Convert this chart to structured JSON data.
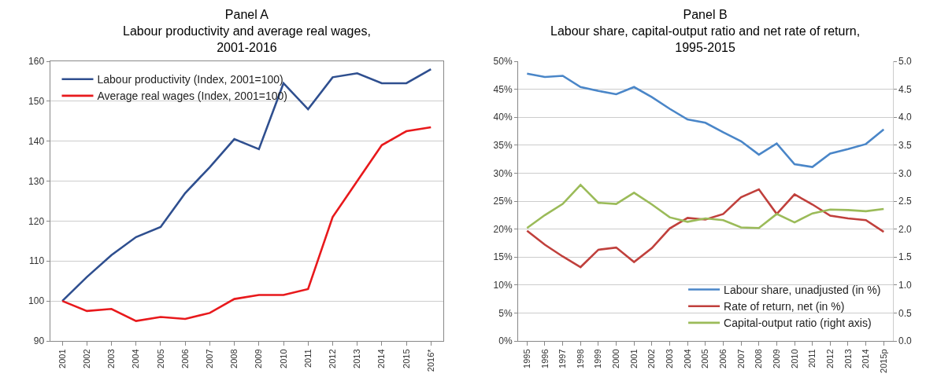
{
  "chart_data": [
    {
      "type": "line",
      "title": "Panel A\nLabour productivity and average real wages,\n2001-2016",
      "categories": [
        "2001",
        "2002",
        "2003",
        "2004",
        "2005",
        "2006",
        "2007",
        "2008",
        "2009",
        "2010",
        "2011",
        "2012",
        "2013",
        "2014",
        "2015",
        "2016*"
      ],
      "series": [
        {
          "name": "Labour productivity (Index, 2001=100)",
          "color": "#2f4f8f",
          "values": [
            100,
            106,
            111.5,
            116,
            118.5,
            127,
            133.5,
            140.5,
            138,
            154.5,
            148,
            156,
            157,
            154.5,
            154.5,
            158
          ]
        },
        {
          "name": "Average real wages (Index, 2001=100)",
          "color": "#e8191c",
          "values": [
            100,
            97.5,
            98,
            95,
            96,
            95.5,
            97,
            100.5,
            101.5,
            101.5,
            103,
            121,
            130,
            139,
            142.5,
            143.5
          ]
        }
      ],
      "ylim": [
        90,
        160
      ],
      "yticks": [
        90,
        100,
        110,
        120,
        130,
        140,
        150,
        160
      ],
      "grid": "y",
      "legend": "top left",
      "marker": "none",
      "line_style": "solid"
    },
    {
      "type": "line",
      "title": "Panel B\nLabour share, capital-output ratio and net rate of return,\n1995-2015",
      "categories": [
        "1995",
        "1996",
        "1997",
        "1998",
        "1999",
        "2000",
        "2001",
        "2002",
        "2003",
        "2004",
        "2005",
        "2006",
        "2007",
        "2008",
        "2009",
        "2010",
        "2011",
        "2012",
        "2013",
        "2014",
        "2015p"
      ],
      "series": [
        {
          "name": "Labour share, unadjusted (in %)",
          "color": "#4a86c8",
          "values": [
            47.8,
            47.2,
            47.4,
            45.4,
            44.7,
            44.1,
            45.4,
            43.6,
            41.5,
            39.6,
            39,
            37.3,
            35.7,
            33.3,
            35.3,
            31.6,
            31.1,
            33.5,
            34.3,
            35.2,
            37.8
          ]
        },
        {
          "name": "Rate of return, net (in %)",
          "color": "#c0403c",
          "values": [
            19.7,
            17.2,
            15.1,
            13.2,
            16.3,
            16.7,
            14.1,
            16.6,
            20.1,
            22.0,
            21.7,
            22.7,
            25.7,
            27.1,
            22.7,
            26.2,
            24.4,
            22.4,
            21.9,
            21.6,
            19.5
          ]
        },
        {
          "name": "Capital-output ratio (right axis)",
          "color": "#9bbb59",
          "axis": "y2",
          "values": [
            2.02,
            2.25,
            2.45,
            2.79,
            2.47,
            2.45,
            2.65,
            2.44,
            2.21,
            2.13,
            2.19,
            2.16,
            2.03,
            2.02,
            2.27,
            2.12,
            2.28,
            2.35,
            2.34,
            2.32,
            2.36
          ]
        }
      ],
      "ylim": [
        0,
        50
      ],
      "yticks": [
        {
          "value": 0,
          "label": "0%"
        },
        {
          "value": 5,
          "label": "5%"
        },
        {
          "value": 10,
          "label": "10%"
        },
        {
          "value": 15,
          "label": "15%"
        },
        {
          "value": 20,
          "label": "20%"
        },
        {
          "value": 25,
          "label": "25%"
        },
        {
          "value": 30,
          "label": "30%"
        },
        {
          "value": 35,
          "label": "35%"
        },
        {
          "value": 40,
          "label": "40%"
        },
        {
          "value": 45,
          "label": "45%"
        },
        {
          "value": 50,
          "label": "50%"
        }
      ],
      "y2lim": [
        0,
        5
      ],
      "y2ticks": [
        {
          "value": 0,
          "label": "0.0"
        },
        {
          "value": 0.5,
          "label": "0.5"
        },
        {
          "value": 1,
          "label": "1.0"
        },
        {
          "value": 1.5,
          "label": "1.5"
        },
        {
          "value": 2,
          "label": "2.0"
        },
        {
          "value": 2.5,
          "label": "2.5"
        },
        {
          "value": 3,
          "label": "3.0"
        },
        {
          "value": 3.5,
          "label": "3.5"
        },
        {
          "value": 4,
          "label": "4.0"
        },
        {
          "value": 4.5,
          "label": "4.5"
        },
        {
          "value": 5,
          "label": "5.0"
        }
      ],
      "grid": "y",
      "legend": "bottom right",
      "marker": "none",
      "line_style": "solid"
    }
  ]
}
